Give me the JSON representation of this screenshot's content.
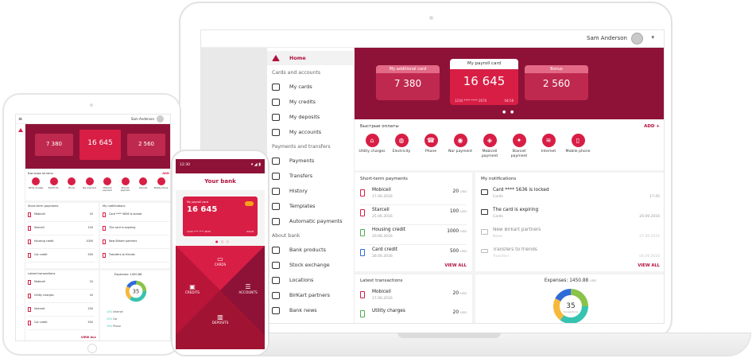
{
  "desktop": {
    "user_name": "Sam Anderson",
    "sidebar": {
      "items": [
        "Home",
        "My cards",
        "My credits",
        "My deposits",
        "My accounts",
        "Payments",
        "Transfers",
        "History",
        "Templates",
        "Automatic payments",
        "Bank products",
        "Stock exchange",
        "Locations",
        "BirKart partners",
        "Bank news"
      ],
      "sections": [
        "Cards and accounts",
        "Payments and transfers",
        "About bank"
      ]
    },
    "hero": {
      "cards": [
        {
          "label": "My additional card",
          "amount": "7 380"
        },
        {
          "label": "My payroll card",
          "amount": "16 645",
          "number": "1234  ****  ****  2670",
          "expiry": "04/18"
        },
        {
          "label": "Bonus",
          "amount": "2 560"
        }
      ]
    },
    "quick": {
      "title": "Быстрые оплаты",
      "add": "ADD +",
      "actions": [
        "Utility charges",
        "Electricity",
        "Phone",
        "Nar payment",
        "Mobicell payment",
        "Starcell payment",
        "Internet",
        "Mobile phone"
      ]
    },
    "short_term": {
      "title": "Short-term payments",
      "rows": [
        {
          "name": "Mobicell",
          "date": "17.06.2016",
          "value": "20",
          "cur": "USD"
        },
        {
          "name": "Starcell",
          "date": "25.06.2016",
          "value": "100",
          "cur": "USD"
        },
        {
          "name": "Housing credit",
          "date": "20.06.2016",
          "value": "1000",
          "cur": "USD"
        },
        {
          "name": "Card credit",
          "date": "28.06.2016",
          "value": "500",
          "cur": "USD"
        }
      ],
      "view_all": "VIEW ALL"
    },
    "notifications": {
      "title": "My notifications",
      "rows": [
        {
          "name": "Card **** 5636 is locked",
          "sub": "Cards",
          "time": "17:45"
        },
        {
          "name": "The card is expiring",
          "sub": "Cards",
          "time": "20.09.2016"
        },
        {
          "name": "New Birkart partners",
          "sub": "News",
          "time": "27.09.2016"
        },
        {
          "name": "Transfers to friends",
          "sub": "Transfers",
          "time": "04.09.2016"
        }
      ],
      "view_all": "VIEW ALL"
    },
    "latest": {
      "title": "Latest transactions",
      "rows": [
        {
          "name": "Mobicell",
          "date": "17.06.2016",
          "value": "20",
          "cur": "USD"
        },
        {
          "name": "Utility charges",
          "date": "",
          "value": "20",
          "cur": "USD"
        }
      ]
    },
    "expenses": {
      "label": "Expenses: 1450.88",
      "cur": "USD",
      "count": "35",
      "count_label": "transactions"
    }
  },
  "tablet": {
    "user_name": "Sam Anderson",
    "cards": [
      {
        "label": "My additional card",
        "amount": "7 380"
      },
      {
        "label": "My payroll card",
        "amount": "16 645"
      },
      {
        "label": "Bonus",
        "amount": "2 560"
      }
    ],
    "quick_title": "Быстрые оплаты",
    "quick_add": "ADD",
    "quick_actions": [
      "Utility charges",
      "Electricity",
      "Phone",
      "Nar payment",
      "Mobicell payment",
      "Starcell payment",
      "Internet",
      "Mobile phone"
    ],
    "short_title": "Short-term payments",
    "short_rows": [
      {
        "name": "Mobicell",
        "value": "20"
      },
      {
        "name": "Starcell",
        "value": "100"
      },
      {
        "name": "Housing credit",
        "value": "1000"
      },
      {
        "name": "Car credit",
        "value": "500"
      }
    ],
    "notif_title": "My notifications",
    "notif_rows": [
      "Card **** 5636 is locked",
      "The card is expiring",
      "New Birkart partners",
      "Transfers to friends"
    ],
    "view_all": "VIEW ALL",
    "latest_title": "Latest transactions",
    "latest_rows": [
      {
        "name": "Mobicell",
        "value": "20"
      },
      {
        "name": "Utility charges",
        "value": "20"
      },
      {
        "name": "Internet",
        "value": "200"
      },
      {
        "name": "Car credit",
        "value": "500"
      }
    ],
    "expenses": "Expenses: 1450.88",
    "count": "35",
    "legend": [
      {
        "pct": "14%",
        "name": "Internet"
      },
      {
        "pct": "23%",
        "name": "Car"
      },
      {
        "pct": "19%",
        "name": "Phone"
      }
    ],
    "colors": {
      "accent": "#d81e45",
      "dark": "#8e1237"
    }
  },
  "phone": {
    "time": "12:30",
    "title": "Your bank",
    "card_label": "My payroll card",
    "card_amount": "16 645",
    "card_number": "1234  ****  ****  2670",
    "card_expiry": "04/18",
    "menu": [
      "CARDS",
      "CREDITS",
      "ACCOUNTS",
      "DEPOSITS"
    ]
  }
}
